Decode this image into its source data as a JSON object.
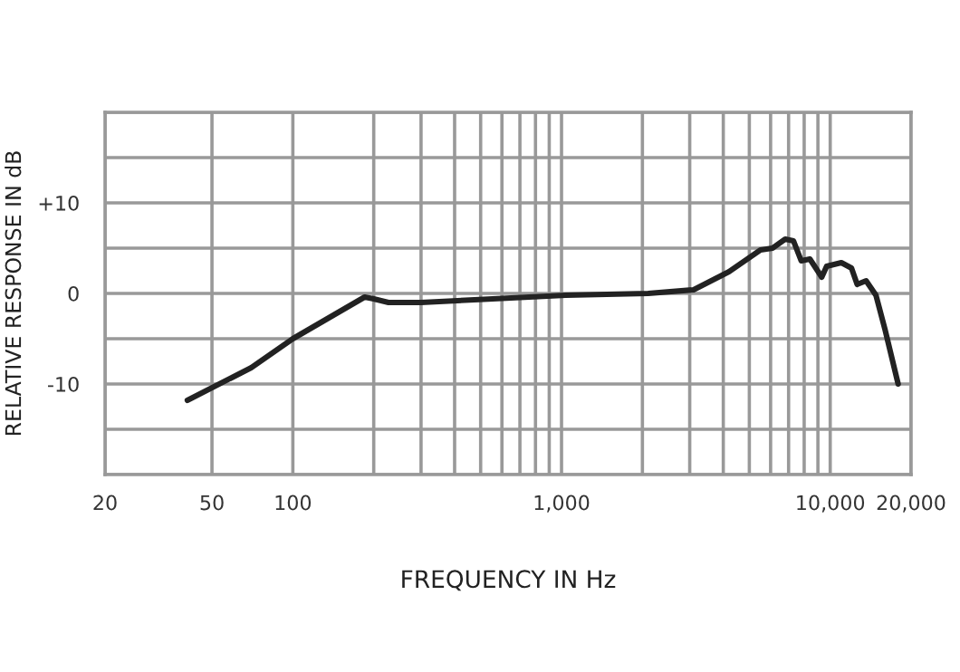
{
  "chart_data": {
    "type": "line",
    "xlabel": "FREQUENCY IN Hz",
    "ylabel": "RELATIVE RESPONSE IN dB",
    "log": "x",
    "x": [
      40.5,
      70,
      100,
      185,
      200,
      227,
      300,
      474,
      1036,
      2100,
      3100,
      4200,
      5500,
      6100,
      6800,
      7300,
      7800,
      8400,
      9300,
      9700,
      11000,
      12000,
      12600,
      13600,
      14800,
      16000,
      17900
    ],
    "series": [
      {
        "color": "#222222",
        "values": [
          -11.8,
          -8.2,
          -5,
          -0.4,
          -0.6,
          -1.0,
          -1.0,
          -0.7,
          -0.2,
          0,
          0.4,
          2.4,
          4.8,
          5,
          6,
          5.8,
          3.6,
          3.8,
          1.8,
          3.0,
          3.4,
          2.8,
          1.0,
          1.4,
          -0.2,
          -4,
          -10
        ]
      }
    ],
    "xlim": [
      20,
      20000
    ],
    "ylim": [
      -20,
      20
    ],
    "xticks": [
      20,
      50,
      100,
      {
        "value": 200,
        "label": null
      },
      {
        "value": 300,
        "label": null
      },
      {
        "value": 400,
        "label": null
      },
      {
        "value": 500,
        "label": null
      },
      {
        "value": 600,
        "label": null
      },
      {
        "value": 700,
        "label": null
      },
      {
        "value": 800,
        "label": null
      },
      {
        "value": 900,
        "label": null
      },
      {
        "value": 1000,
        "label": "1,000"
      },
      {
        "value": 2000,
        "label": null
      },
      {
        "value": 3000,
        "label": null
      },
      {
        "value": 4000,
        "label": null
      },
      {
        "value": 5000,
        "label": null
      },
      {
        "value": 6000,
        "label": null
      },
      {
        "value": 7000,
        "label": null
      },
      {
        "value": 8000,
        "label": null
      },
      {
        "value": 9000,
        "label": null
      },
      {
        "value": 10000,
        "label": "10,000"
      },
      {
        "value": 20000,
        "label": "20,000"
      }
    ],
    "yticks": [
      {
        "value": -20,
        "label": null
      },
      {
        "value": -15,
        "label": null
      },
      -10,
      {
        "value": -5,
        "label": null
      },
      0,
      {
        "value": 5,
        "label": null
      },
      {
        "value": 10,
        "label": "+10"
      },
      {
        "value": 15,
        "label": null
      },
      {
        "value": 20,
        "label": null
      }
    ],
    "grid": true,
    "marker": "none",
    "line_style": "solid"
  }
}
